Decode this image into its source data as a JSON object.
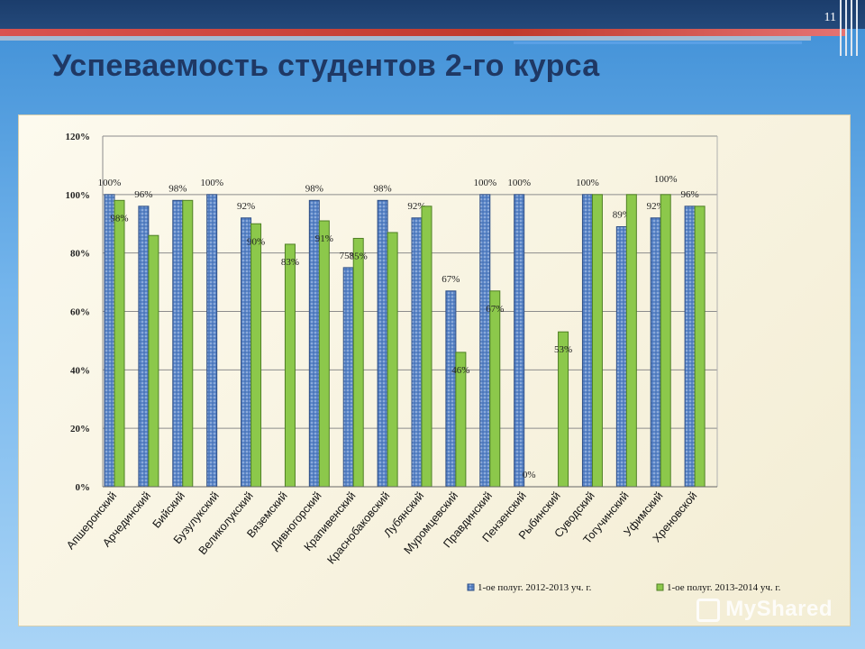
{
  "slide": {
    "number": "11",
    "title": "Успеваемость студентов 2-го курса"
  },
  "watermark": {
    "text": "MyShared"
  },
  "colors": {
    "series1": "#5b86c8",
    "series2": "#8cc84b"
  },
  "chart_data": {
    "type": "bar",
    "title": "",
    "xlabel": "",
    "ylabel": "",
    "ylim": [
      0,
      120
    ],
    "yticks": [
      "0%",
      "20%",
      "40%",
      "60%",
      "80%",
      "100%",
      "120%"
    ],
    "grid": true,
    "legend_position": "bottom-right",
    "categories": [
      "Апшеронский",
      "Арчединский",
      "Бийский",
      "Бузулукский",
      "Великолукский",
      "Вяземский",
      "Дивногорский",
      "Крапивенский",
      "Краснобаковский",
      "Лубянский",
      "Муромцевский",
      "Правдинский",
      "Пензенский",
      "Рыбинский",
      "Суводский",
      "Тогучинский",
      "Уфимский",
      "Хреновской"
    ],
    "series": [
      {
        "name": "1-ое полуг. 2012-2013 уч. г.",
        "values": [
          100,
          96,
          98,
          100,
          92,
          null,
          98,
          75,
          98,
          92,
          67,
          100,
          100,
          null,
          100,
          89,
          92,
          96
        ],
        "labels": [
          "100%",
          "96%",
          "98%",
          "100%",
          "92%",
          "",
          "98%",
          "75%",
          "98%",
          "92%",
          "67%",
          "100%",
          "100%",
          "",
          "100%",
          "89%",
          "92%",
          "96%"
        ]
      },
      {
        "name": "1-ое полуг. 2013-2014 уч. г.",
        "values": [
          98,
          86,
          98,
          null,
          90,
          83,
          91,
          85,
          87,
          96,
          46,
          67,
          0,
          53,
          100,
          100,
          100,
          96
        ],
        "labels": [
          "98%",
          "",
          "",
          "",
          "90%",
          "83%",
          "91%",
          "85%",
          "",
          "",
          "46%",
          "67%",
          "0%",
          "53%",
          "",
          "",
          "100%",
          ""
        ]
      }
    ]
  }
}
